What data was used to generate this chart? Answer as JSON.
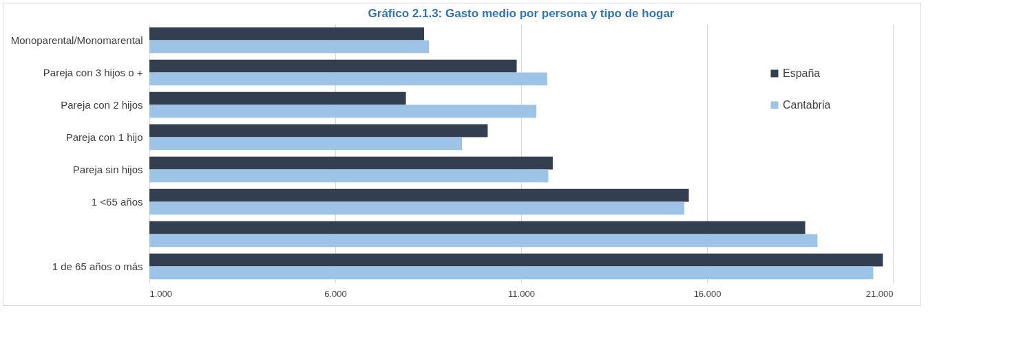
{
  "chart_data": {
    "type": "bar",
    "orientation": "horizontal",
    "title": "Gráfico 2.1.3: Gasto medio por persona y tipo de hogar",
    "categories": [
      "Monoparental/Monomarental",
      "Pareja con 3 hijos o +",
      "Pareja con 2 hijos",
      "Pareja con 1 hijo",
      "Pareja sin hijos",
      "1 <65 años",
      null,
      "1 de 65 años o más"
    ],
    "series": [
      {
        "name": "España",
        "color": "#333f50",
        "values": [
          8390,
          10880,
          7900,
          10100,
          11850,
          15510,
          18640,
          20730
        ]
      },
      {
        "name": "Cantabria",
        "color": "#9dc3e6",
        "values": [
          8520,
          11700,
          11410,
          9410,
          11730,
          15390,
          18970,
          20470
        ]
      }
    ],
    "xlim": [
      1000,
      21000
    ],
    "xticks": [
      {
        "value": 1000,
        "label": "1.000"
      },
      {
        "value": 6000,
        "label": "6.000"
      },
      {
        "value": 11000,
        "label": "11.000"
      },
      {
        "value": 16000,
        "label": "16.000"
      },
      {
        "value": 21000,
        "label": "21.000"
      }
    ],
    "grid": "x",
    "legend": "right"
  }
}
